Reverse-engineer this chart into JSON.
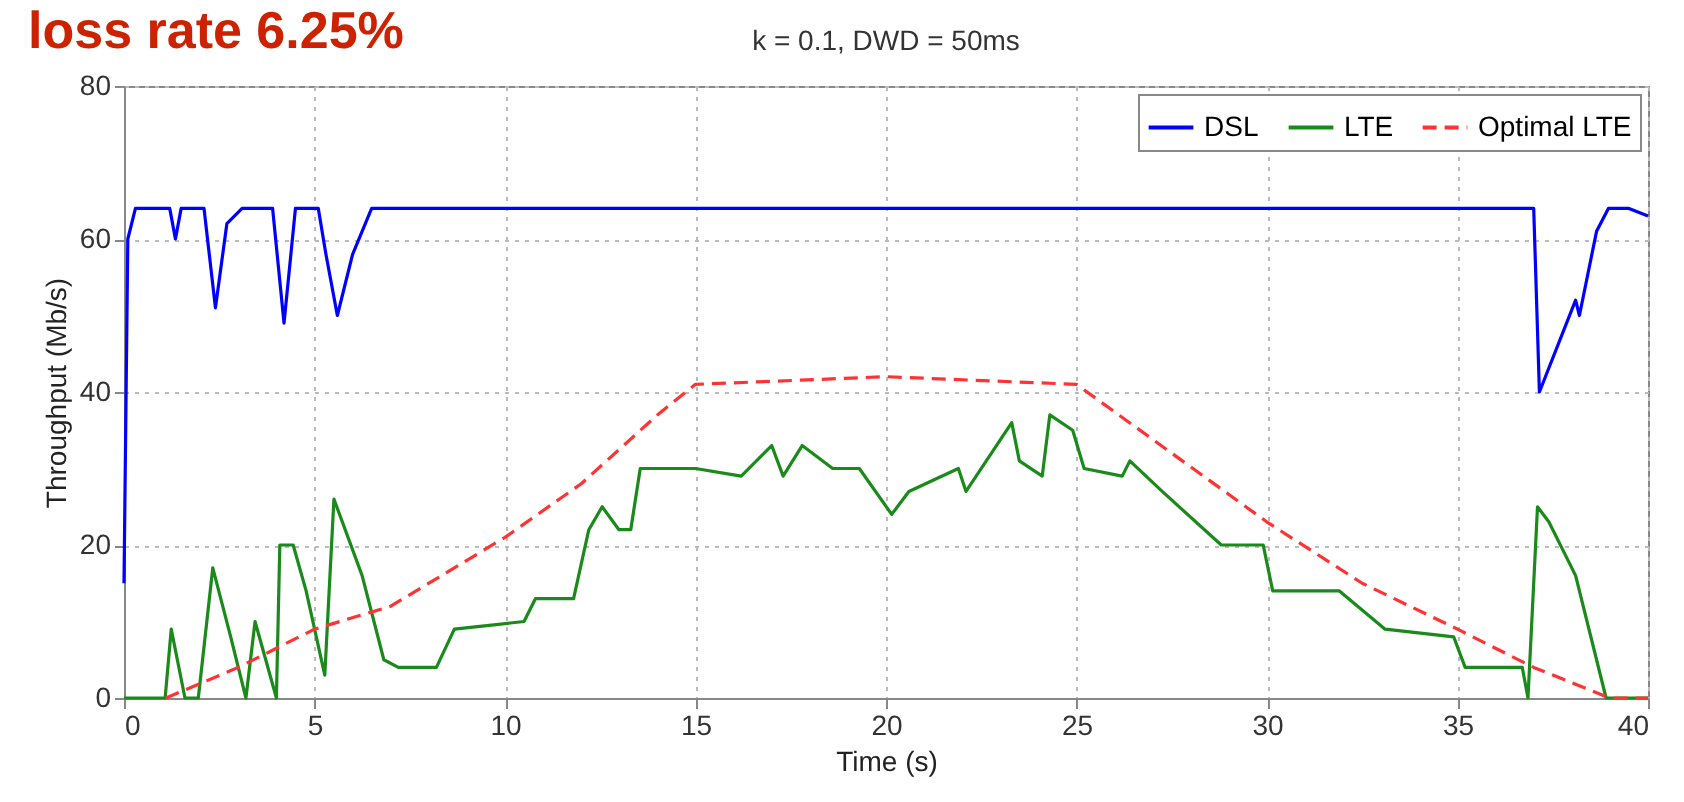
{
  "chart_data": {
    "type": "line",
    "title": "k = 0.1, DWD = 50ms",
    "xlabel": "Time (s)",
    "ylabel": "Throughput (Mb/s)",
    "annotations": [
      "loss rate 6.25%"
    ],
    "xlim": [
      0,
      40
    ],
    "xticks": [
      0,
      5,
      10,
      15,
      20,
      25,
      30,
      35,
      40
    ],
    "ylim": [
      0,
      80
    ],
    "yticks": [
      0,
      20,
      40,
      60,
      80
    ],
    "grid": true,
    "legend": "top right",
    "marker": "none",
    "series": [
      {
        "name": "DSL",
        "color": "#0000ff",
        "line_style": "solid",
        "x": [
          0,
          0.1,
          0.3,
          1.2,
          1.35,
          1.5,
          2.1,
          2.4,
          2.7,
          3.1,
          3.9,
          4.2,
          4.5,
          5.1,
          5.3,
          5.6,
          6.0,
          6.5,
          10,
          20,
          30,
          37,
          37.15,
          38.1,
          38.2,
          38.65,
          38.96,
          39.5,
          40
        ],
        "values": [
          15,
          60,
          64,
          64,
          60,
          64,
          64,
          51,
          62,
          64,
          64,
          49,
          64,
          64,
          58,
          50,
          58,
          64,
          64,
          64,
          64,
          64,
          40,
          52,
          50,
          61,
          64,
          64,
          63
        ]
      },
      {
        "name": "LTE",
        "color": "#1a8a1a",
        "line_style": "solid",
        "x": [
          0,
          1.08,
          1.24,
          1.6,
          1.95,
          2.33,
          2.8,
          3.2,
          3.44,
          4.0,
          4.09,
          4.44,
          4.78,
          5.27,
          5.51,
          6.25,
          6.82,
          7.2,
          8.2,
          8.67,
          10.5,
          10.8,
          11.8,
          12.2,
          12.55,
          12.99,
          13.3,
          13.55,
          15.0,
          16.2,
          17.0,
          17.3,
          17.8,
          18.6,
          19.3,
          20.15,
          20.6,
          21.9,
          22.1,
          23.3,
          23.5,
          24.1,
          24.3,
          24.9,
          25.2,
          26.2,
          26.4,
          27.25,
          28.8,
          29.9,
          30.15,
          31.9,
          33.1,
          34.9,
          35.2,
          36.7,
          36.85,
          37.1,
          37.4,
          38.1,
          38.9,
          40
        ],
        "values": [
          0,
          0,
          9,
          0,
          0,
          17,
          8,
          0,
          10,
          0,
          20,
          20,
          14,
          3,
          26,
          16,
          5,
          4,
          4,
          9,
          10,
          13,
          13,
          22,
          25,
          22,
          22,
          30,
          30,
          29,
          33,
          29,
          33,
          30,
          30,
          24,
          27,
          30,
          27,
          36,
          31,
          29,
          37,
          35,
          30,
          29,
          31,
          27,
          20,
          20,
          14,
          14,
          9,
          8,
          4,
          4,
          0,
          25,
          23,
          16,
          0,
          0
        ]
      },
      {
        "name": "Optimal LTE",
        "color": "#ff3333",
        "line_style": "dashed",
        "x": [
          1.1,
          3,
          5,
          7,
          9,
          10,
          12,
          14,
          15,
          20,
          25,
          27.5,
          30,
          32.5,
          35,
          37,
          39,
          40
        ],
        "values": [
          0,
          4,
          9,
          12,
          18,
          21,
          28,
          37,
          41,
          42,
          41,
          32,
          23,
          15,
          9,
          4,
          0,
          0
        ]
      }
    ]
  }
}
